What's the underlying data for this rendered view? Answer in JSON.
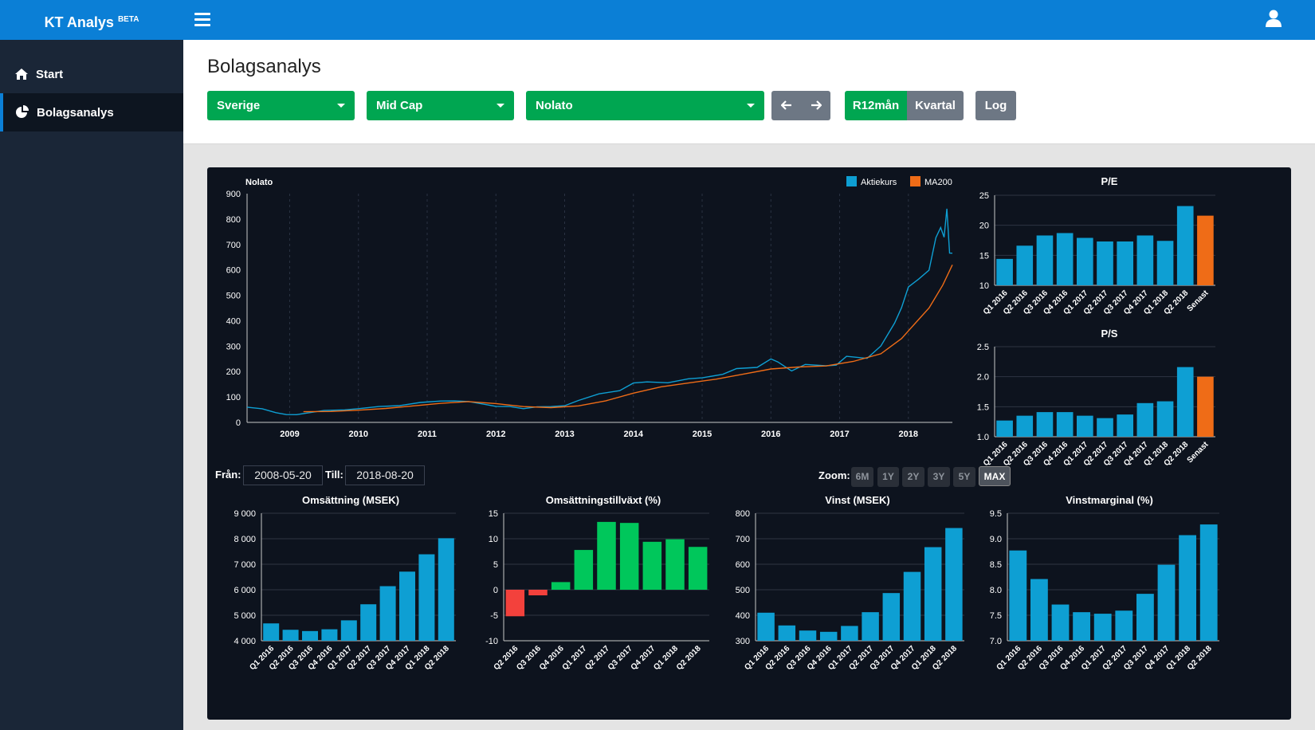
{
  "app": {
    "brand": "KT Analys",
    "brand_sup": "BETA"
  },
  "sidebar": {
    "items": [
      {
        "label": "Start",
        "icon": "home-icon"
      },
      {
        "label": "Bolagsanalys",
        "icon": "pie-chart-icon"
      }
    ]
  },
  "header": {
    "title": "Bolagsanalys",
    "country": "Sverige",
    "list": "Mid Cap",
    "company": "Nolato",
    "toggle_r12": "R12mån",
    "toggle_quarter": "Kvartal",
    "log": "Log"
  },
  "controls": {
    "from_label": "Från:",
    "from_value": "2008-05-20",
    "to_label": "Till:",
    "to_value": "2018-08-20",
    "zoom_label": "Zoom:",
    "zoom_options": [
      "6M",
      "1Y",
      "2Y",
      "3Y",
      "5Y",
      "MAX"
    ],
    "zoom_selected": "MAX"
  },
  "colors": {
    "accent": "#0b7fd6",
    "green": "#00a651",
    "bar": "#0e9fd3",
    "orange": "#ef6c17",
    "red": "#f3413c",
    "bar_green": "#00c75b"
  },
  "chart_data": [
    {
      "id": "price",
      "type": "line",
      "title": "Nolato",
      "legend": [
        "Aktiekurs",
        "MA200"
      ],
      "legend_placement": "top-right",
      "ylim": [
        0,
        900
      ],
      "yticks": [
        0,
        100,
        200,
        300,
        400,
        500,
        600,
        700,
        800,
        900
      ],
      "xticks": [
        "2009",
        "2010",
        "2011",
        "2012",
        "2013",
        "2014",
        "2015",
        "2016",
        "2017",
        "2018"
      ],
      "x_range": [
        2008.38,
        2018.64
      ],
      "series": [
        {
          "name": "Aktiekurs",
          "points": [
            [
              2008.38,
              60
            ],
            [
              2008.6,
              52
            ],
            [
              2008.8,
              40
            ],
            [
              2008.95,
              30
            ],
            [
              2009.1,
              30
            ],
            [
              2009.25,
              38
            ],
            [
              2009.5,
              45
            ],
            [
              2009.8,
              50
            ],
            [
              2010.0,
              55
            ],
            [
              2010.3,
              60
            ],
            [
              2010.6,
              68
            ],
            [
              2010.9,
              78
            ],
            [
              2011.2,
              82
            ],
            [
              2011.4,
              88
            ],
            [
              2011.6,
              80
            ],
            [
              2011.85,
              70
            ],
            [
              2012.0,
              65
            ],
            [
              2012.2,
              60
            ],
            [
              2012.4,
              55
            ],
            [
              2012.6,
              62
            ],
            [
              2012.8,
              60
            ],
            [
              2013.0,
              68
            ],
            [
              2013.2,
              85
            ],
            [
              2013.5,
              110
            ],
            [
              2013.8,
              130
            ],
            [
              2014.0,
              150
            ],
            [
              2014.2,
              160
            ],
            [
              2014.5,
              160
            ],
            [
              2014.8,
              165
            ],
            [
              2015.0,
              180
            ],
            [
              2015.3,
              190
            ],
            [
              2015.5,
              205
            ],
            [
              2015.8,
              225
            ],
            [
              2016.0,
              245
            ],
            [
              2016.1,
              235
            ],
            [
              2016.3,
              210
            ],
            [
              2016.5,
              220
            ],
            [
              2016.8,
              225
            ],
            [
              2016.95,
              230
            ],
            [
              2017.1,
              250
            ],
            [
              2017.4,
              260
            ],
            [
              2017.6,
              300
            ],
            [
              2017.8,
              380
            ],
            [
              2017.9,
              470
            ],
            [
              2018.0,
              520
            ],
            [
              2018.15,
              560
            ],
            [
              2018.3,
              620
            ],
            [
              2018.4,
              700
            ],
            [
              2018.47,
              780
            ],
            [
              2018.52,
              740
            ],
            [
              2018.56,
              810
            ],
            [
              2018.6,
              690
            ],
            [
              2018.64,
              660
            ]
          ]
        },
        {
          "name": "MA200",
          "points": [
            [
              2009.2,
              42
            ],
            [
              2009.6,
              43
            ],
            [
              2010.0,
              48
            ],
            [
              2010.4,
              55
            ],
            [
              2010.8,
              65
            ],
            [
              2011.2,
              75
            ],
            [
              2011.6,
              82
            ],
            [
              2012.0,
              74
            ],
            [
              2012.4,
              62
            ],
            [
              2012.8,
              58
            ],
            [
              2013.2,
              65
            ],
            [
              2013.6,
              85
            ],
            [
              2014.0,
              115
            ],
            [
              2014.4,
              140
            ],
            [
              2014.8,
              155
            ],
            [
              2015.2,
              170
            ],
            [
              2015.6,
              190
            ],
            [
              2016.0,
              210
            ],
            [
              2016.4,
              218
            ],
            [
              2016.8,
              222
            ],
            [
              2017.2,
              240
            ],
            [
              2017.6,
              270
            ],
            [
              2017.9,
              330
            ],
            [
              2018.1,
              390
            ],
            [
              2018.3,
              450
            ],
            [
              2018.5,
              540
            ],
            [
              2018.64,
              620
            ]
          ]
        }
      ]
    },
    {
      "id": "pe",
      "type": "bar",
      "title": "P/E",
      "ylim": [
        10,
        25
      ],
      "yticks": [
        10,
        15,
        20,
        25
      ],
      "categories": [
        "Q1 2016",
        "Q2 2016",
        "Q3 2016",
        "Q4 2016",
        "Q1 2017",
        "Q2 2017",
        "Q3 2017",
        "Q4 2017",
        "Q1 2018",
        "Q2 2018",
        "Senast"
      ],
      "values": [
        14.4,
        16.6,
        18.3,
        18.7,
        17.9,
        17.3,
        17.3,
        18.3,
        17.4,
        23.2,
        21.6
      ],
      "highlight_last": true
    },
    {
      "id": "ps",
      "type": "bar",
      "title": "P/S",
      "ylim": [
        1.0,
        2.5
      ],
      "yticks": [
        "1.0",
        "1.5",
        "2.0",
        "2.5"
      ],
      "categories": [
        "Q1 2016",
        "Q2 2016",
        "Q3 2016",
        "Q4 2016",
        "Q1 2017",
        "Q2 2017",
        "Q3 2017",
        "Q4 2017",
        "Q1 2018",
        "Q2 2018",
        "Senast"
      ],
      "values": [
        1.27,
        1.35,
        1.41,
        1.41,
        1.35,
        1.31,
        1.37,
        1.56,
        1.59,
        2.16,
        2.0
      ],
      "highlight_last": true
    },
    {
      "id": "oms",
      "type": "bar",
      "title": "Omsättning (MSEK)",
      "ylim": [
        4000,
        9000
      ],
      "yticks": [
        "4 000",
        "5 000",
        "6 000",
        "7 000",
        "8 000",
        "9 000"
      ],
      "categories": [
        "Q1 2016",
        "Q2 2016",
        "Q3 2016",
        "Q4 2016",
        "Q1 2017",
        "Q2 2017",
        "Q3 2017",
        "Q4 2017",
        "Q1 2018",
        "Q2 2018"
      ],
      "values": [
        4680,
        4430,
        4380,
        4450,
        4800,
        5430,
        6140,
        6710,
        7390,
        8020
      ]
    },
    {
      "id": "growth",
      "type": "bar",
      "title": "Omsättningstillväxt (%)",
      "ylim": [
        -10,
        15
      ],
      "yticks": [
        -10,
        -5,
        0,
        5,
        10,
        15
      ],
      "categories": [
        "Q2 2016",
        "Q3 2016",
        "Q4 2016",
        "Q1 2017",
        "Q2 2017",
        "Q3 2017",
        "Q4 2017",
        "Q1 2018",
        "Q2 2018"
      ],
      "values": [
        -5.2,
        -1.1,
        1.5,
        7.8,
        13.3,
        13.1,
        9.4,
        9.9,
        8.4
      ]
    },
    {
      "id": "vinst",
      "type": "bar",
      "title": "Vinst (MSEK)",
      "ylim": [
        300,
        800
      ],
      "yticks": [
        300,
        400,
        500,
        600,
        700,
        800
      ],
      "categories": [
        "Q1 2016",
        "Q2 2016",
        "Q3 2016",
        "Q4 2016",
        "Q1 2017",
        "Q2 2017",
        "Q3 2017",
        "Q4 2017",
        "Q1 2018",
        "Q2 2018"
      ],
      "values": [
        410,
        360,
        340,
        335,
        358,
        412,
        487,
        570,
        667,
        742
      ]
    },
    {
      "id": "marg",
      "type": "bar",
      "title": "Vinstmarginal (%)",
      "ylim": [
        7.0,
        9.5
      ],
      "yticks": [
        "7.0",
        "7.5",
        "8.0",
        "8.5",
        "9.0",
        "9.5"
      ],
      "categories": [
        "Q1 2016",
        "Q2 2016",
        "Q3 2016",
        "Q4 2016",
        "Q1 2017",
        "Q2 2017",
        "Q3 2017",
        "Q4 2017",
        "Q1 2018",
        "Q2 2018"
      ],
      "values": [
        8.77,
        8.21,
        7.71,
        7.56,
        7.53,
        7.59,
        7.92,
        8.49,
        9.07,
        9.28
      ]
    }
  ]
}
